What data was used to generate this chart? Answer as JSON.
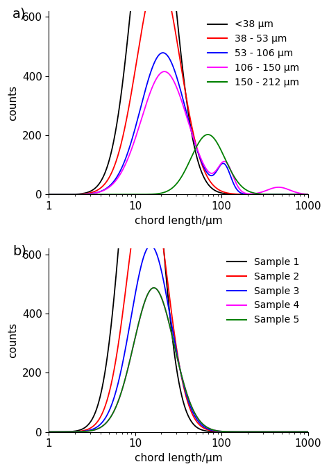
{
  "panel_a": {
    "title": "a)",
    "xlabel": "chord length/μm",
    "ylabel": "counts",
    "ylim": [
      0,
      620
    ],
    "yticks": [
      0,
      200,
      400,
      600
    ],
    "xlim": [
      1,
      1000
    ],
    "legend_labels": [
      "<38 μm",
      "38 - 53 μm",
      "53 - 106 μm",
      "106 - 150 μm",
      "150 - 212 μm"
    ],
    "colors": [
      "#000000",
      "#ff0000",
      "#0000ff",
      "#ff00ff",
      "#008000"
    ]
  },
  "panel_b": {
    "title": "b)",
    "xlabel": "chord length/μm",
    "ylabel": "counts",
    "ylim": [
      0,
      620
    ],
    "yticks": [
      0,
      200,
      400,
      600
    ],
    "xlim": [
      1,
      1000
    ],
    "legend_labels": [
      "Sample 1",
      "Sample 2",
      "Sample 3",
      "Sample 4",
      "Sample 5"
    ],
    "colors": [
      "#000000",
      "#ff0000",
      "#0000ff",
      "#ff00ff",
      "#008000"
    ]
  },
  "background_color": "#ffffff",
  "font_size": 11,
  "legend_font_size": 10,
  "label_font_size": 11
}
